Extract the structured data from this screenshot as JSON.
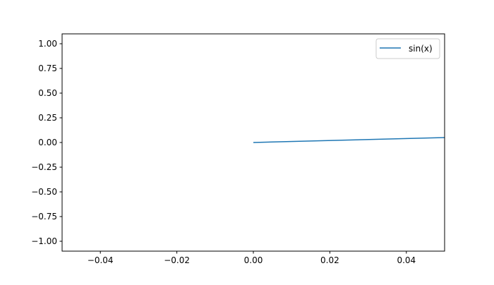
{
  "chart_data": {
    "type": "line",
    "title": "",
    "xlabel": "",
    "ylabel": "",
    "xlim": [
      -0.05,
      0.05
    ],
    "ylim": [
      -1.1,
      1.1
    ],
    "grid": false,
    "legend_position": "top-right",
    "x_ticks": [
      -0.04,
      -0.02,
      0.0,
      0.02,
      0.04
    ],
    "x_tick_labels": [
      "−0.04",
      "−0.02",
      "0.00",
      "0.02",
      "0.04"
    ],
    "y_ticks": [
      1.0,
      0.75,
      0.5,
      0.25,
      0.0,
      -0.25,
      -0.5,
      -0.75,
      -1.0
    ],
    "y_tick_labels": [
      "1.00",
      "0.75",
      "0.50",
      "0.25",
      "0.00",
      "−0.25",
      "−0.50",
      "−0.75",
      "−1.00"
    ],
    "series": [
      {
        "name": "sin(x)",
        "color": "#1f77b4",
        "x": [
          0.0,
          0.05
        ],
        "y": [
          0.0,
          0.05
        ]
      }
    ]
  }
}
